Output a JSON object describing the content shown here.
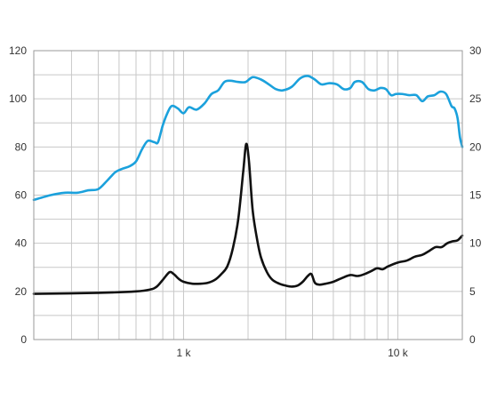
{
  "chart_data": {
    "type": "line",
    "x_scale": "log",
    "xlim": [
      200,
      20000
    ],
    "ylim_left": [
      0,
      120
    ],
    "ylim_right": [
      0,
      30
    ],
    "left_ticks": [
      0,
      20,
      40,
      60,
      80,
      100,
      120
    ],
    "right_ticks": [
      0,
      5,
      10,
      15,
      20,
      25,
      30
    ],
    "x_tick_labels": [
      {
        "x": 1000,
        "label": "1 k"
      },
      {
        "x": 10000,
        "label": "10 k"
      }
    ],
    "grid": true,
    "grid_color": "#c8c8c8",
    "frame_color": "#9a9a9a",
    "series": [
      {
        "axis": "left",
        "color": "#1ba1dc",
        "points": [
          [
            200,
            58
          ],
          [
            240,
            60
          ],
          [
            280,
            61
          ],
          [
            320,
            61
          ],
          [
            360,
            62
          ],
          [
            400,
            62.5
          ],
          [
            440,
            66
          ],
          [
            480,
            69.5
          ],
          [
            520,
            71
          ],
          [
            560,
            72
          ],
          [
            600,
            74
          ],
          [
            640,
            79
          ],
          [
            680,
            82.5
          ],
          [
            730,
            82
          ],
          [
            760,
            82
          ],
          [
            800,
            89
          ],
          [
            840,
            94
          ],
          [
            880,
            97
          ],
          [
            940,
            96
          ],
          [
            1000,
            94
          ],
          [
            1060,
            96.5
          ],
          [
            1150,
            95.5
          ],
          [
            1250,
            98
          ],
          [
            1350,
            102
          ],
          [
            1450,
            103.5
          ],
          [
            1550,
            107
          ],
          [
            1650,
            107.5
          ],
          [
            1800,
            107
          ],
          [
            1950,
            107
          ],
          [
            2100,
            109
          ],
          [
            2300,
            108
          ],
          [
            2500,
            106
          ],
          [
            2700,
            104
          ],
          [
            2900,
            103.5
          ],
          [
            3200,
            105
          ],
          [
            3500,
            108.5
          ],
          [
            3800,
            109.5
          ],
          [
            4100,
            108
          ],
          [
            4400,
            106
          ],
          [
            4800,
            106.5
          ],
          [
            5200,
            106
          ],
          [
            5600,
            104
          ],
          [
            6000,
            104.5
          ],
          [
            6300,
            107
          ],
          [
            6800,
            107
          ],
          [
            7300,
            104
          ],
          [
            7800,
            103.5
          ],
          [
            8300,
            104.5
          ],
          [
            8800,
            104
          ],
          [
            9300,
            101.5
          ],
          [
            9800,
            102
          ],
          [
            10500,
            102
          ],
          [
            11300,
            101.5
          ],
          [
            12200,
            101.5
          ],
          [
            13000,
            99
          ],
          [
            13800,
            101
          ],
          [
            14800,
            101.5
          ],
          [
            15800,
            103
          ],
          [
            16800,
            102
          ],
          [
            17800,
            97
          ],
          [
            18400,
            96
          ],
          [
            19000,
            92
          ],
          [
            19500,
            84
          ],
          [
            20000,
            80
          ]
        ]
      },
      {
        "axis": "right",
        "color": "#111111",
        "points": [
          [
            200,
            4.75
          ],
          [
            400,
            4.85
          ],
          [
            600,
            5.0
          ],
          [
            700,
            5.2
          ],
          [
            750,
            5.5
          ],
          [
            800,
            6.2
          ],
          [
            860,
            7.0
          ],
          [
            900,
            6.8
          ],
          [
            950,
            6.3
          ],
          [
            1000,
            6.0
          ],
          [
            1100,
            5.8
          ],
          [
            1200,
            5.8
          ],
          [
            1300,
            5.9
          ],
          [
            1400,
            6.2
          ],
          [
            1500,
            6.8
          ],
          [
            1600,
            7.6
          ],
          [
            1700,
            9.5
          ],
          [
            1800,
            12.5
          ],
          [
            1900,
            17.5
          ],
          [
            1960,
            20.3
          ],
          [
            2020,
            18.5
          ],
          [
            2100,
            13.5
          ],
          [
            2200,
            10.5
          ],
          [
            2300,
            8.5
          ],
          [
            2450,
            7.0
          ],
          [
            2600,
            6.2
          ],
          [
            2800,
            5.8
          ],
          [
            3000,
            5.6
          ],
          [
            3200,
            5.5
          ],
          [
            3400,
            5.6
          ],
          [
            3600,
            6.0
          ],
          [
            3800,
            6.6
          ],
          [
            3950,
            6.8
          ],
          [
            4100,
            5.9
          ],
          [
            4300,
            5.7
          ],
          [
            4600,
            5.8
          ],
          [
            5000,
            6.0
          ],
          [
            5500,
            6.4
          ],
          [
            6000,
            6.7
          ],
          [
            6500,
            6.6
          ],
          [
            7000,
            6.8
          ],
          [
            7500,
            7.1
          ],
          [
            8000,
            7.4
          ],
          [
            8500,
            7.3
          ],
          [
            9000,
            7.6
          ],
          [
            10000,
            8.0
          ],
          [
            11000,
            8.2
          ],
          [
            12000,
            8.6
          ],
          [
            13000,
            8.8
          ],
          [
            14000,
            9.2
          ],
          [
            15000,
            9.6
          ],
          [
            16000,
            9.6
          ],
          [
            17000,
            10.0
          ],
          [
            18000,
            10.2
          ],
          [
            19000,
            10.3
          ],
          [
            20000,
            10.8
          ]
        ]
      }
    ]
  }
}
